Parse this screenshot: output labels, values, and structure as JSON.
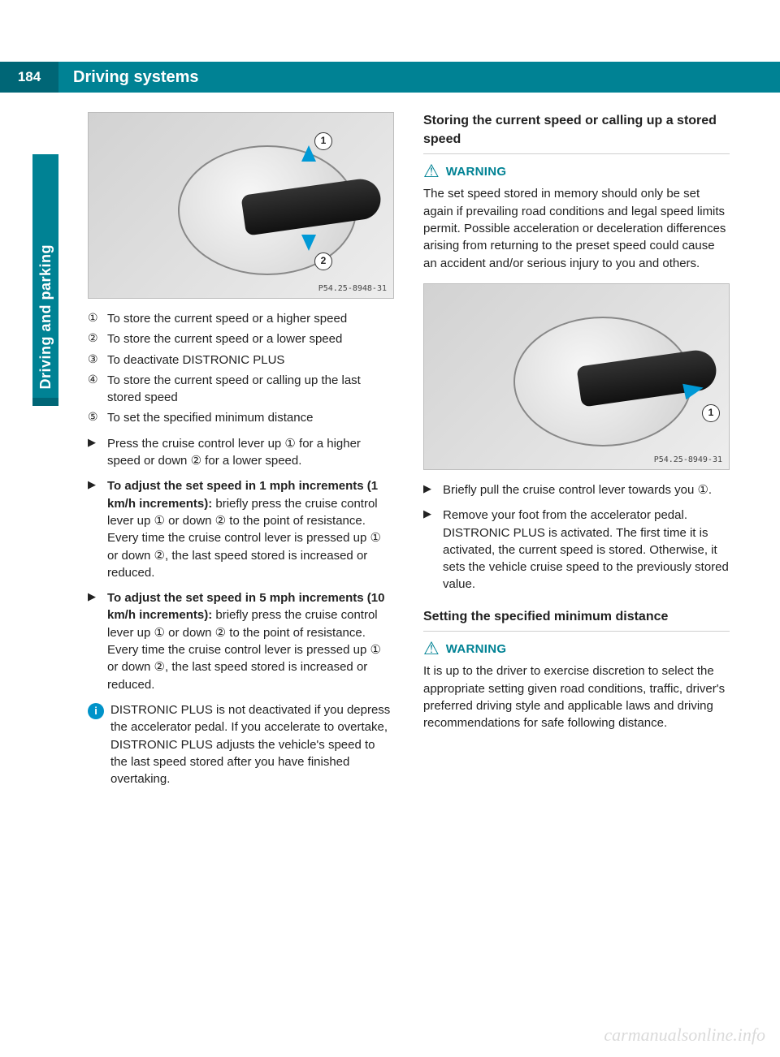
{
  "page": {
    "number": "184",
    "chapter_title": "Driving systems",
    "sidebar_label": "Driving and parking"
  },
  "figures": {
    "fig1": {
      "caption": "P54.25-8948-31",
      "callouts": [
        "1",
        "2"
      ]
    },
    "fig2": {
      "caption": "P54.25-8949-31",
      "callouts": [
        "1"
      ]
    }
  },
  "legend": {
    "items": [
      {
        "marker": "①",
        "text": "To store the current speed or a higher speed"
      },
      {
        "marker": "②",
        "text": "To store the current speed or a lower speed"
      },
      {
        "marker": "③",
        "text": "To deactivate DISTRONIC PLUS"
      },
      {
        "marker": "④",
        "text": "To store the current speed or calling up the last stored speed"
      },
      {
        "marker": "⑤",
        "text": "To set the specified minimum distance"
      }
    ]
  },
  "steps_left": [
    {
      "marker": "▶",
      "html": "Press the cruise control lever up ① for a higher speed or down ② for a lower speed."
    },
    {
      "marker": "▶",
      "html": "<b>To adjust the set speed in 1 mph increments (1 km/h increments):</b> briefly press the cruise control lever up ① or down ② to the point of resistance. Every time the cruise control lever is pressed up ① or down ②, the last speed stored is increased or reduced."
    },
    {
      "marker": "▶",
      "html": "<b>To adjust the set speed in 5 mph increments (10 km/h increments):</b> briefly press the cruise control lever up ① or down ② to the point of resistance. Every time the cruise control lever is pressed up ① or down ②, the last speed stored is increased or reduced."
    }
  ],
  "info_left": {
    "icon": "i",
    "text": "DISTRONIC PLUS is not deactivated if you depress the accelerator pedal. If you accelerate to overtake, DISTRONIC PLUS adjusts the vehicle's speed to the last speed stored after you have finished overtaking."
  },
  "right": {
    "section1_title": "Storing the current speed or calling up a stored speed",
    "warning1_label": "WARNING",
    "warning1_text": "The set speed stored in memory should only be set again if prevailing road conditions and legal speed limits permit. Possible acceleration or deceleration differences arising from returning to the preset speed could cause an accident and/or serious injury to you and others.",
    "steps": [
      {
        "marker": "▶",
        "html": "Briefly pull the cruise control lever towards you ①."
      },
      {
        "marker": "▶",
        "html": "Remove your foot from the accelerator pedal.<br>DISTRONIC PLUS is activated. The first time it is activated, the current speed is stored. Otherwise, it sets the vehicle cruise speed to the previously stored value."
      }
    ],
    "section2_title": "Setting the specified minimum distance",
    "warning2_label": "WARNING",
    "warning2_text": "It is up to the driver to exercise discretion to select the appropriate setting given road conditions, traffic, driver's preferred driving style and applicable laws and driving recommendations for safe following distance."
  },
  "watermark": "carmanualsonline.info",
  "colors": {
    "brand": "#008294",
    "brand_dark": "#006676",
    "info_blue": "#0093c9",
    "arrow_blue": "#0099d6"
  }
}
